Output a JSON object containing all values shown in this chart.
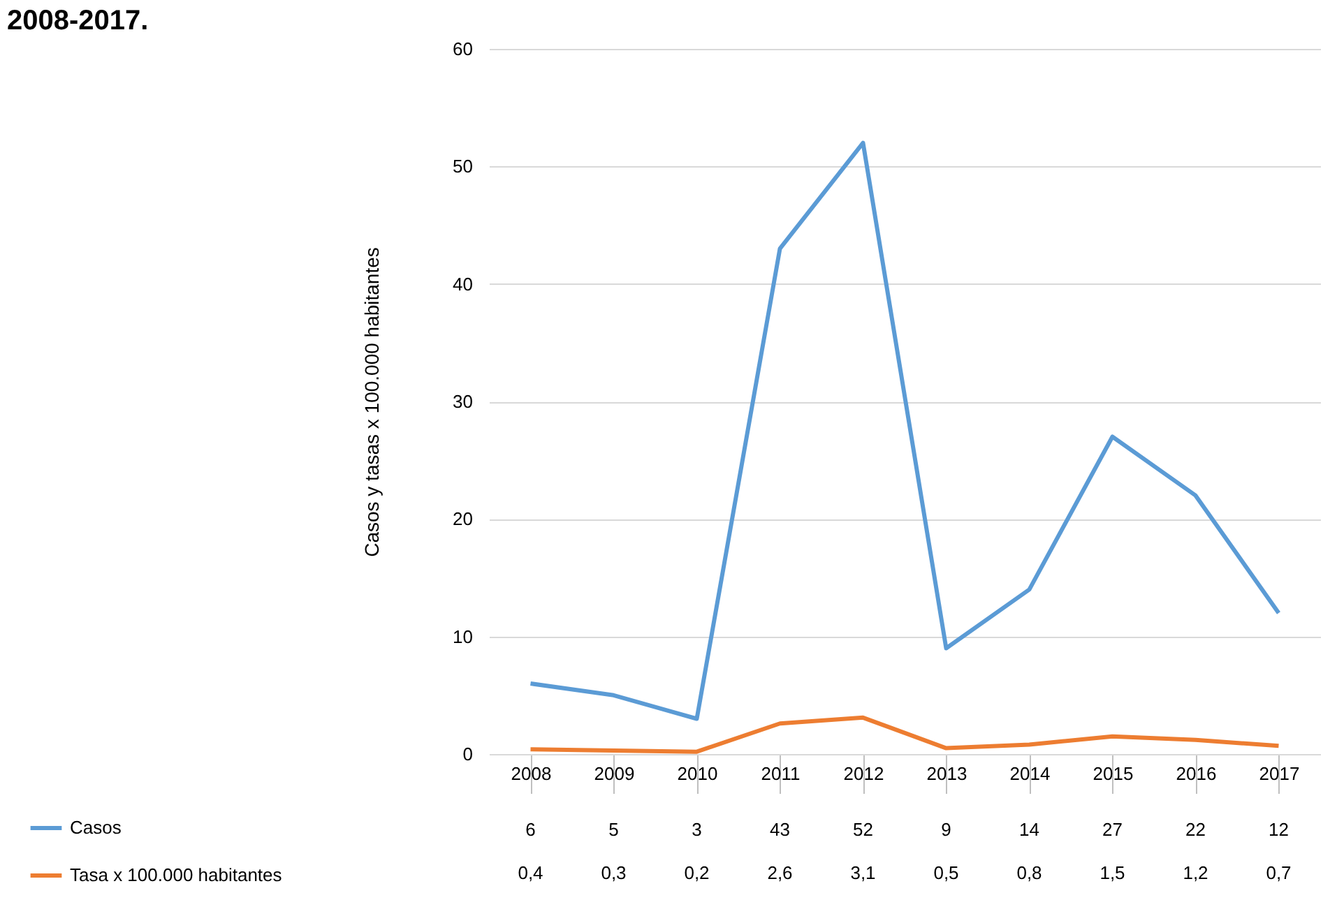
{
  "chart_data": {
    "type": "line",
    "title": "2008-2017.",
    "ylabel": "Casos y tasas x 100.000 habitantes",
    "categories": [
      "2008",
      "2009",
      "2010",
      "2011",
      "2012",
      "2013",
      "2014",
      "2015",
      "2016",
      "2017"
    ],
    "series": [
      {
        "name": "Casos",
        "color": "#5b9bd5",
        "values": [
          6,
          5,
          3,
          43,
          52,
          9,
          14,
          27,
          22,
          12
        ],
        "value_labels": [
          "6",
          "5",
          "3",
          "43",
          "52",
          "9",
          "14",
          "27",
          "22",
          "12"
        ]
      },
      {
        "name": "Tasa x 100.000 habitantes",
        "color": "#ed7d31",
        "values": [
          0.4,
          0.3,
          0.2,
          2.6,
          3.1,
          0.5,
          0.8,
          1.5,
          1.2,
          0.7
        ],
        "value_labels": [
          "0,4",
          "0,3",
          "0,2",
          "2,6",
          "3,1",
          "0,5",
          "0,8",
          "1,5",
          "1,2",
          "0,7"
        ]
      }
    ],
    "ylim": [
      0,
      60
    ],
    "yticks": [
      0,
      10,
      20,
      30,
      40,
      50,
      60
    ],
    "grid": "y",
    "legend": "bottom",
    "marker": "none",
    "line_style": "solid"
  }
}
